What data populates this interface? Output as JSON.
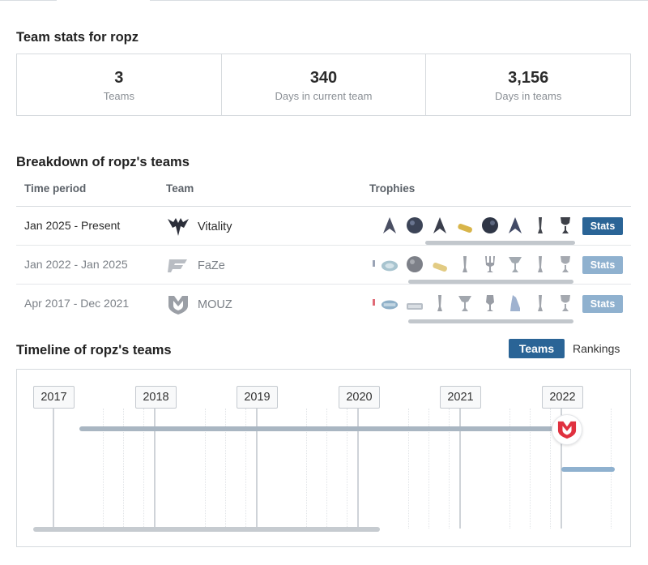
{
  "summary": {
    "title": "Team stats for ropz",
    "stats": [
      {
        "value": "3",
        "label": "Teams"
      },
      {
        "value": "340",
        "label": "Days in current team"
      },
      {
        "value": "3,156",
        "label": "Days in teams"
      }
    ]
  },
  "breakdown": {
    "title": "Breakdown of ropz's teams",
    "headers": {
      "period": "Time period",
      "team": "Team",
      "trophies": "Trophies"
    },
    "rows": [
      {
        "period": "Jan 2025 - Present",
        "team": "Vitality",
        "logo": "vitality-logo",
        "button": "Stats",
        "trophy_icons": [
          "blade-trophy-icon",
          "orb-trophy-icon",
          "blade-trophy-icon",
          "bar-trophy-icon",
          "orb-trophy-icon",
          "blade-trophy-icon",
          "slim-trophy-icon",
          "cup-trophy-icon"
        ]
      },
      {
        "period": "Jan 2022 - Jan 2025",
        "team": "FaZe",
        "logo": "faze-logo",
        "button": "Stats",
        "trophy_icons": [
          "plate-trophy-icon",
          "orb-trophy-icon",
          "bar-trophy-icon",
          "slim-trophy-icon",
          "fork-trophy-icon",
          "chalice-trophy-icon",
          "slim-trophy-icon",
          "cup-trophy-icon"
        ]
      },
      {
        "period": "Apr 2017 - Dec 2021",
        "team": "MOUZ",
        "logo": "mouz-logo",
        "button": "Stats",
        "trophy_icons": [
          "plate-trophy-icon",
          "bar-trophy-icon",
          "slim-trophy-icon",
          "chalice-trophy-icon",
          "fork-trophy-icon",
          "crystal-trophy-icon",
          "slim-trophy-icon",
          "cup-trophy-icon"
        ]
      }
    ]
  },
  "timeline": {
    "title": "Timeline of ropz's teams",
    "toggle": {
      "active": "Teams",
      "inactive": "Rankings"
    },
    "years": [
      "2017",
      "2018",
      "2019",
      "2020",
      "2021",
      "2022"
    ],
    "badge_icon": "mouz-logo"
  },
  "colors": {
    "button_active": "#2a6496",
    "button_faded": "#8fb1cf",
    "mouz_bar": "#a9b6c2",
    "faze_bar": "#8fb1cf",
    "scroll": "#c2c7cc"
  }
}
